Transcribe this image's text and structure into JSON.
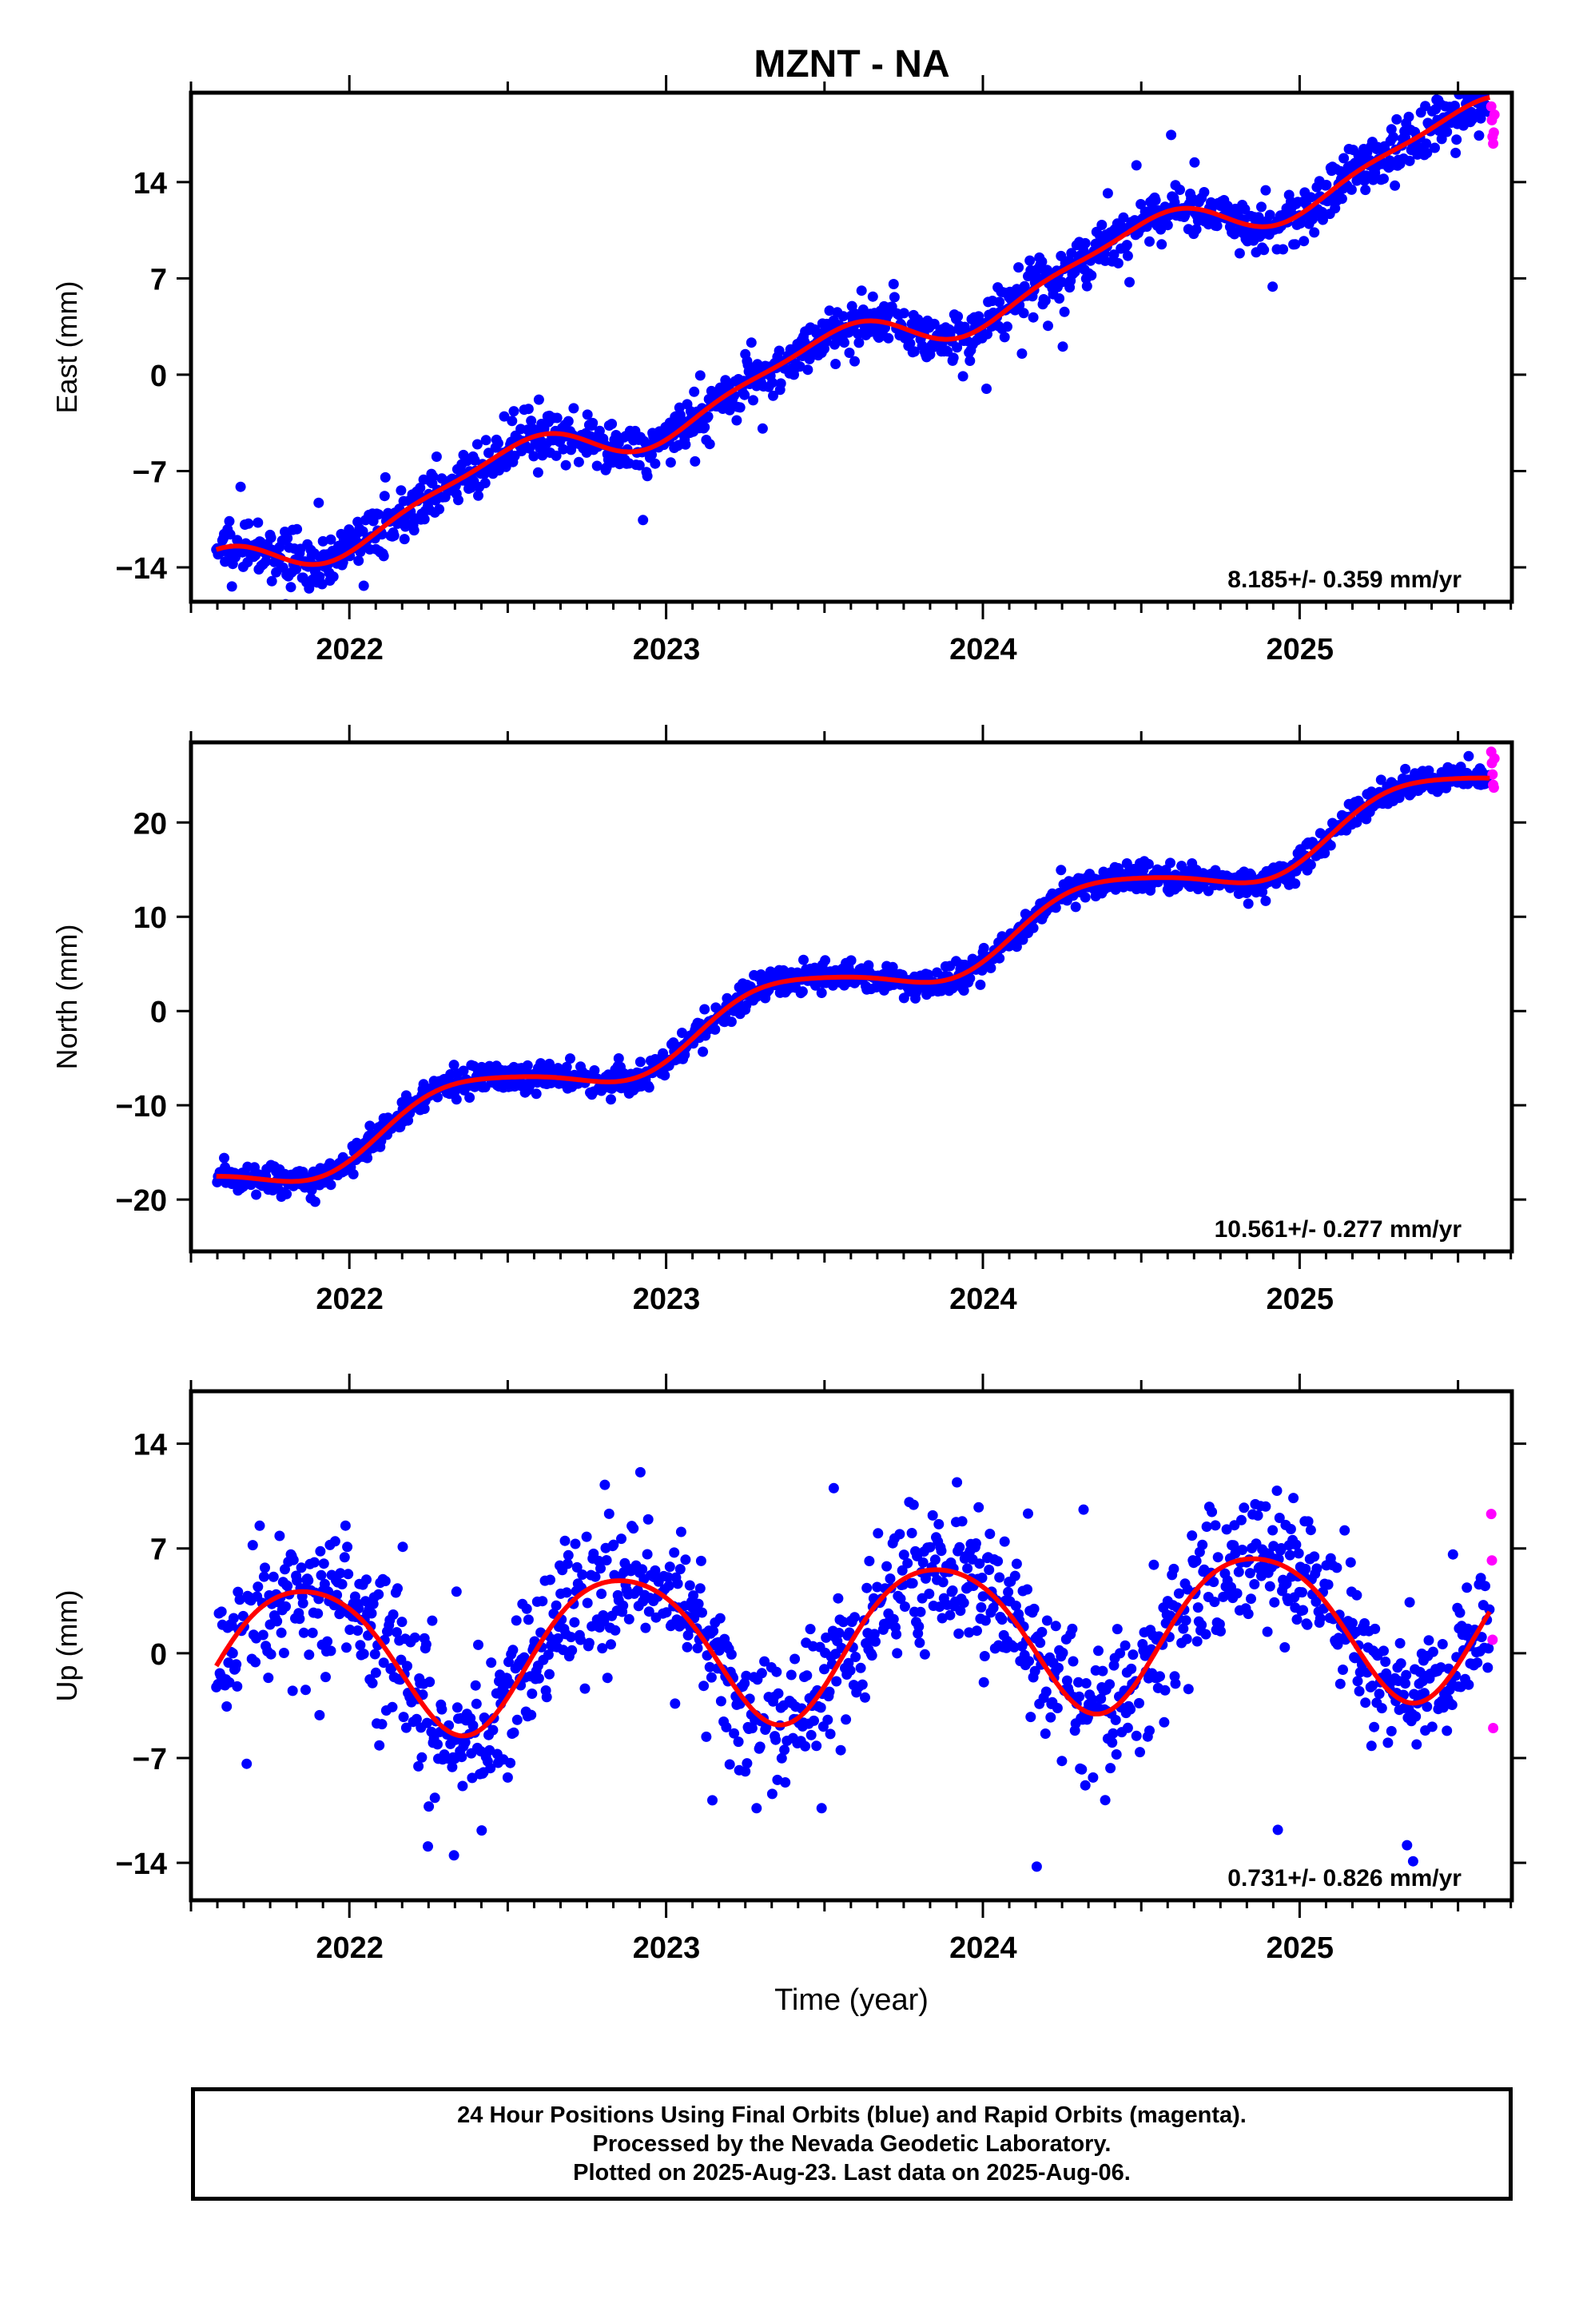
{
  "title": "MZNT - NA",
  "colors": {
    "final": "#0000ff",
    "rapid": "#ff00ff",
    "fit": "#ff0000",
    "frame": "#000000"
  },
  "footer": {
    "line1": "24 Hour Positions Using Final Orbits (blue) and Rapid Orbits (magenta).",
    "line2": "Processed by the Nevada Geodetic Laboratory.",
    "line3": "Plotted on 2025-Aug-23. Last data on 2025-Aug-06."
  },
  "chart_data": [
    {
      "type": "scatter",
      "name": "east",
      "ylabel": "East (mm)",
      "xlabel": "",
      "xlim": [
        2021.5,
        2025.67
      ],
      "ylim": [
        -16.5,
        20.5
      ],
      "yticks": [
        -14,
        -7,
        0,
        7,
        14
      ],
      "xticks": [
        2022,
        2023,
        2024,
        2025
      ],
      "rate_label": "8.185+/- 0.359 mm/yr",
      "trend_mm_per_yr": 8.185,
      "trend_start": 2021.58,
      "trend_end": 2025.6,
      "offset_mm": -14.5,
      "seasonal_amp": 1.7,
      "seasonal_phase_deg": 120,
      "semiannual_amp": 0.5,
      "semiannual_phase_deg": 40,
      "scatter_mm": 1.1,
      "outlier_rate": 0.03,
      "rapid_values": [
        19.5,
        18.5,
        17.3,
        16.8,
        17.6,
        18.9
      ]
    },
    {
      "type": "scatter",
      "name": "north",
      "ylabel": "North (mm)",
      "xlabel": "",
      "xlim": [
        2021.5,
        2025.67
      ],
      "ylim": [
        -25.5,
        28.5
      ],
      "yticks": [
        -20,
        -10,
        0,
        10,
        20
      ],
      "xticks": [
        2022,
        2023,
        2024,
        2025
      ],
      "rate_label": "10.561+/- 0.277 mm/yr",
      "trend_mm_per_yr": 10.561,
      "trend_start": 2021.58,
      "trend_end": 2025.6,
      "offset_mm": -18.2,
      "seasonal_amp": 2.6,
      "seasonal_phase_deg": 165,
      "semiannual_amp": 0.4,
      "semiannual_phase_deg": 0,
      "scatter_mm": 0.9,
      "outlier_rate": 0.01,
      "rapid_values": [
        27.5,
        26.3,
        25.1,
        24.0,
        23.7,
        26.8
      ]
    },
    {
      "type": "scatter",
      "name": "up",
      "ylabel": "Up (mm)",
      "xlabel": "Time (year)",
      "xlim": [
        2021.5,
        2025.67
      ],
      "ylim": [
        -16.5,
        17.5
      ],
      "yticks": [
        -14,
        -7,
        0,
        7,
        14
      ],
      "xticks": [
        2022,
        2023,
        2024,
        2025
      ],
      "rate_label": "0.731+/- 0.826 mm/yr",
      "trend_mm_per_yr": 0.731,
      "trend_start": 2021.58,
      "trend_end": 2025.6,
      "offset_mm": -0.5,
      "seasonal_amp": 5.0,
      "seasonal_phase_deg": -10,
      "semiannual_amp": 0.6,
      "semiannual_phase_deg": 60,
      "scatter_mm": 2.7,
      "outlier_rate": 0.04,
      "rapid_values": [
        9.3,
        6.2,
        0.9,
        -5.0
      ]
    }
  ]
}
